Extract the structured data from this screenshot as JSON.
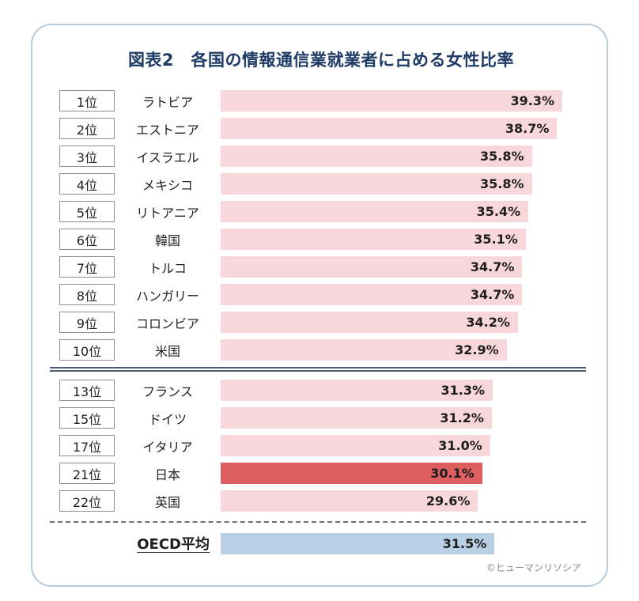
{
  "title": "図表2　各国の情報通信業就業者に占める女性比率",
  "footer_credit": "©ヒューマンリソシア",
  "colors": {
    "bar_default": "#f8d7da",
    "bar_japan": "#dd5f5f",
    "bar_oecd": "#b9cfe3",
    "title": "#1e3a66",
    "card_border": "#b9cbdb",
    "separator": "#4c5c76",
    "text": "#222222"
  },
  "chart_data": {
    "type": "bar",
    "orientation": "horizontal",
    "title": "図表2　各国の情報通信業就業者に占める女性比率",
    "unit": "%",
    "xlim": [
      0,
      40
    ],
    "grid": false,
    "legend": false,
    "rows": [
      {
        "rank": "1位",
        "country": "ラトビア",
        "value": 39.3,
        "label": "39.3%",
        "section": 1,
        "highlight": false
      },
      {
        "rank": "2位",
        "country": "エストニア",
        "value": 38.7,
        "label": "38.7%",
        "section": 1,
        "highlight": false
      },
      {
        "rank": "3位",
        "country": "イスラエル",
        "value": 35.8,
        "label": "35.8%",
        "section": 1,
        "highlight": false
      },
      {
        "rank": "4位",
        "country": "メキシコ",
        "value": 35.8,
        "label": "35.8%",
        "section": 1,
        "highlight": false
      },
      {
        "rank": "5位",
        "country": "リトアニア",
        "value": 35.4,
        "label": "35.4%",
        "section": 1,
        "highlight": false
      },
      {
        "rank": "6位",
        "country": "韓国",
        "value": 35.1,
        "label": "35.1%",
        "section": 1,
        "highlight": false
      },
      {
        "rank": "7位",
        "country": "トルコ",
        "value": 34.7,
        "label": "34.7%",
        "section": 1,
        "highlight": false
      },
      {
        "rank": "8位",
        "country": "ハンガリー",
        "value": 34.7,
        "label": "34.7%",
        "section": 1,
        "highlight": false
      },
      {
        "rank": "9位",
        "country": "コロンビア",
        "value": 34.2,
        "label": "34.2%",
        "section": 1,
        "highlight": false
      },
      {
        "rank": "10位",
        "country": "米国",
        "value": 32.9,
        "label": "32.9%",
        "section": 1,
        "highlight": false
      },
      {
        "rank": "13位",
        "country": "フランス",
        "value": 31.3,
        "label": "31.3%",
        "section": 2,
        "highlight": false
      },
      {
        "rank": "15位",
        "country": "ドイツ",
        "value": 31.2,
        "label": "31.2%",
        "section": 2,
        "highlight": false
      },
      {
        "rank": "17位",
        "country": "イタリア",
        "value": 31.0,
        "label": "31.0%",
        "section": 2,
        "highlight": false
      },
      {
        "rank": "21位",
        "country": "日本",
        "value": 30.1,
        "label": "30.1%",
        "section": 2,
        "highlight": true
      },
      {
        "rank": "22位",
        "country": "英国",
        "value": 29.6,
        "label": "29.6%",
        "section": 2,
        "highlight": false
      }
    ],
    "summary_row": {
      "label": "OECD平均",
      "value": 31.5,
      "value_label": "31.5%"
    }
  }
}
